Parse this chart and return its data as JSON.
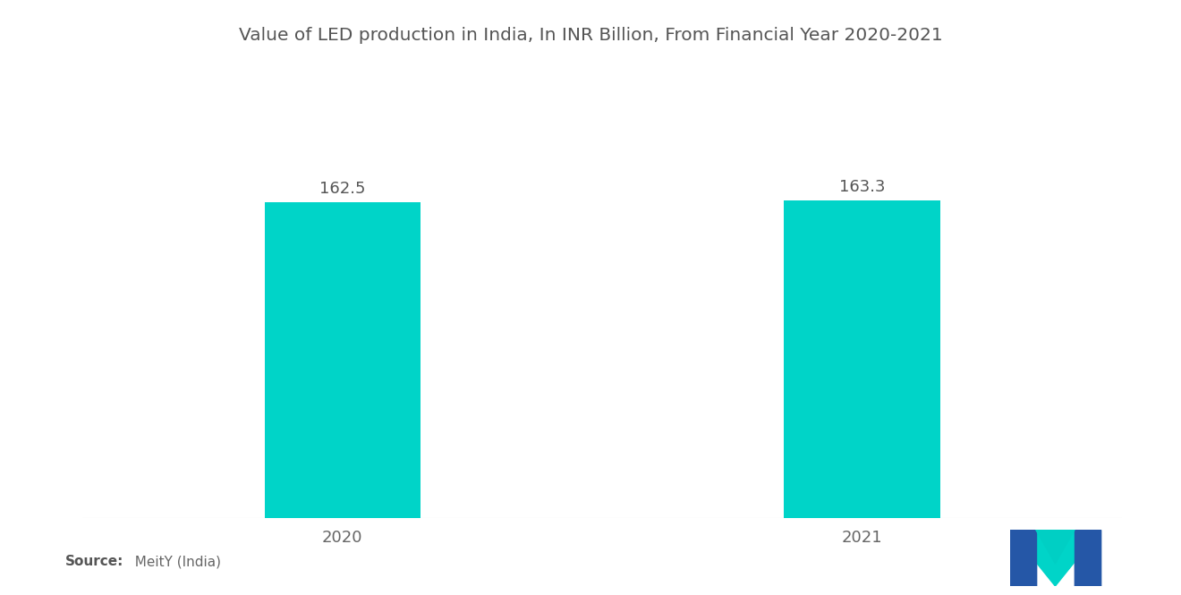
{
  "title": "Value of LED production in India, In INR Billion, From Financial Year 2020-2021",
  "categories": [
    "2020",
    "2021"
  ],
  "values": [
    162.5,
    163.3
  ],
  "bar_color": "#00D4C8",
  "background_color": "#ffffff",
  "title_fontsize": 14.5,
  "label_fontsize": 13,
  "value_fontsize": 13,
  "source_bold": "Source:",
  "source_rest": "  MeitY (India)",
  "ylim": [
    0,
    230
  ],
  "bar_width": 0.3,
  "x_positions": [
    1,
    2
  ],
  "xlim": [
    0.5,
    2.5
  ]
}
